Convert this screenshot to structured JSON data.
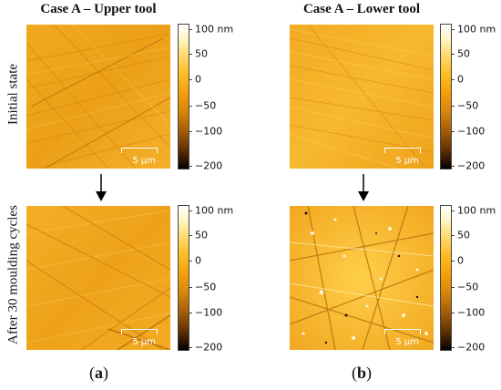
{
  "columns": {
    "left_title": "Case A – Upper tool",
    "right_title": "Case A – Lower tool"
  },
  "rows": {
    "top_label": "Initial  state",
    "bottom_label": "After 30 moulding cycles"
  },
  "scale_bar": {
    "label": "5 μm"
  },
  "colorbar": {
    "ticks": [
      "100 nm",
      "50",
      "0",
      "−50",
      "−100",
      "−200"
    ],
    "colors": [
      "#ffffff",
      "#fff6c4",
      "#ffd86a",
      "#ffbd25",
      "#f3a00c",
      "#d8870a",
      "#a85f08",
      "#6b3804",
      "#2a1200",
      "#000000"
    ]
  },
  "panel_labels": {
    "left": {
      "open": "(",
      "letter": "a",
      "close": ")"
    },
    "right": {
      "open": "(",
      "letter": "b",
      "close": ")"
    }
  }
}
